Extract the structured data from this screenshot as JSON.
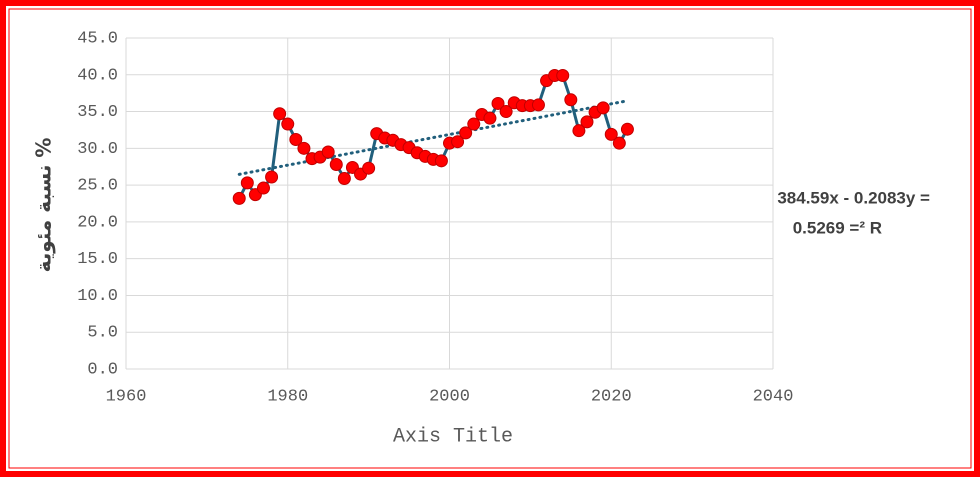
{
  "chart_data": {
    "type": "scatter-line",
    "x_label": "Axis Title",
    "y_label": "نسبة مئوية %",
    "annotations": [
      "384.59x - 0.2083y =",
      "0.5269 =² R"
    ],
    "x": [
      1974,
      1975,
      1976,
      1977,
      1978,
      1979,
      1980,
      1981,
      1982,
      1983,
      1984,
      1985,
      1986,
      1987,
      1988,
      1989,
      1990,
      1991,
      1992,
      1993,
      1994,
      1995,
      1996,
      1997,
      1998,
      1999,
      2000,
      2001,
      2002,
      2003,
      2004,
      2005,
      2006,
      2007,
      2008,
      2009,
      2010,
      2011,
      2012,
      2013,
      2014,
      2015,
      2016,
      2017,
      2018,
      2019,
      2020,
      2021,
      2022
    ],
    "series": [
      {
        "color": "#215f7c",
        "marker_color": "#ff0000",
        "values": [
          23.2,
          25.3,
          23.7,
          24.6,
          26.1,
          34.7,
          33.3,
          31.2,
          30.0,
          28.6,
          28.8,
          29.5,
          27.8,
          25.9,
          27.4,
          26.5,
          27.3,
          32.0,
          31.4,
          31.1,
          30.5,
          30.1,
          29.4,
          28.9,
          28.5,
          28.3,
          30.7,
          30.9,
          32.1,
          33.3,
          34.6,
          34.1,
          36.1,
          35.0,
          36.2,
          35.8,
          35.8,
          35.9,
          39.2,
          39.9,
          39.9,
          36.6,
          32.4,
          33.6,
          34.9,
          35.5,
          31.9,
          30.7,
          32.6
        ]
      }
    ],
    "trendline": true,
    "xlim": [
      1960,
      2040
    ],
    "xticks": [
      1960,
      1980,
      2000,
      2020,
      2040
    ],
    "ylim": [
      0,
      45
    ],
    "yticks": [
      {
        "value": 0,
        "label": "0.0"
      },
      {
        "value": 5,
        "label": "5.0"
      },
      {
        "value": 10,
        "label": "10.0"
      },
      {
        "value": 15,
        "label": "15.0"
      },
      {
        "value": 20,
        "label": "20.0"
      },
      {
        "value": 25,
        "label": "25.0"
      },
      {
        "value": 30,
        "label": "30.0"
      },
      {
        "value": 35,
        "label": "35.0"
      },
      {
        "value": 40,
        "label": "40.0"
      },
      {
        "value": 45,
        "label": "45.0"
      }
    ],
    "grid": true
  }
}
